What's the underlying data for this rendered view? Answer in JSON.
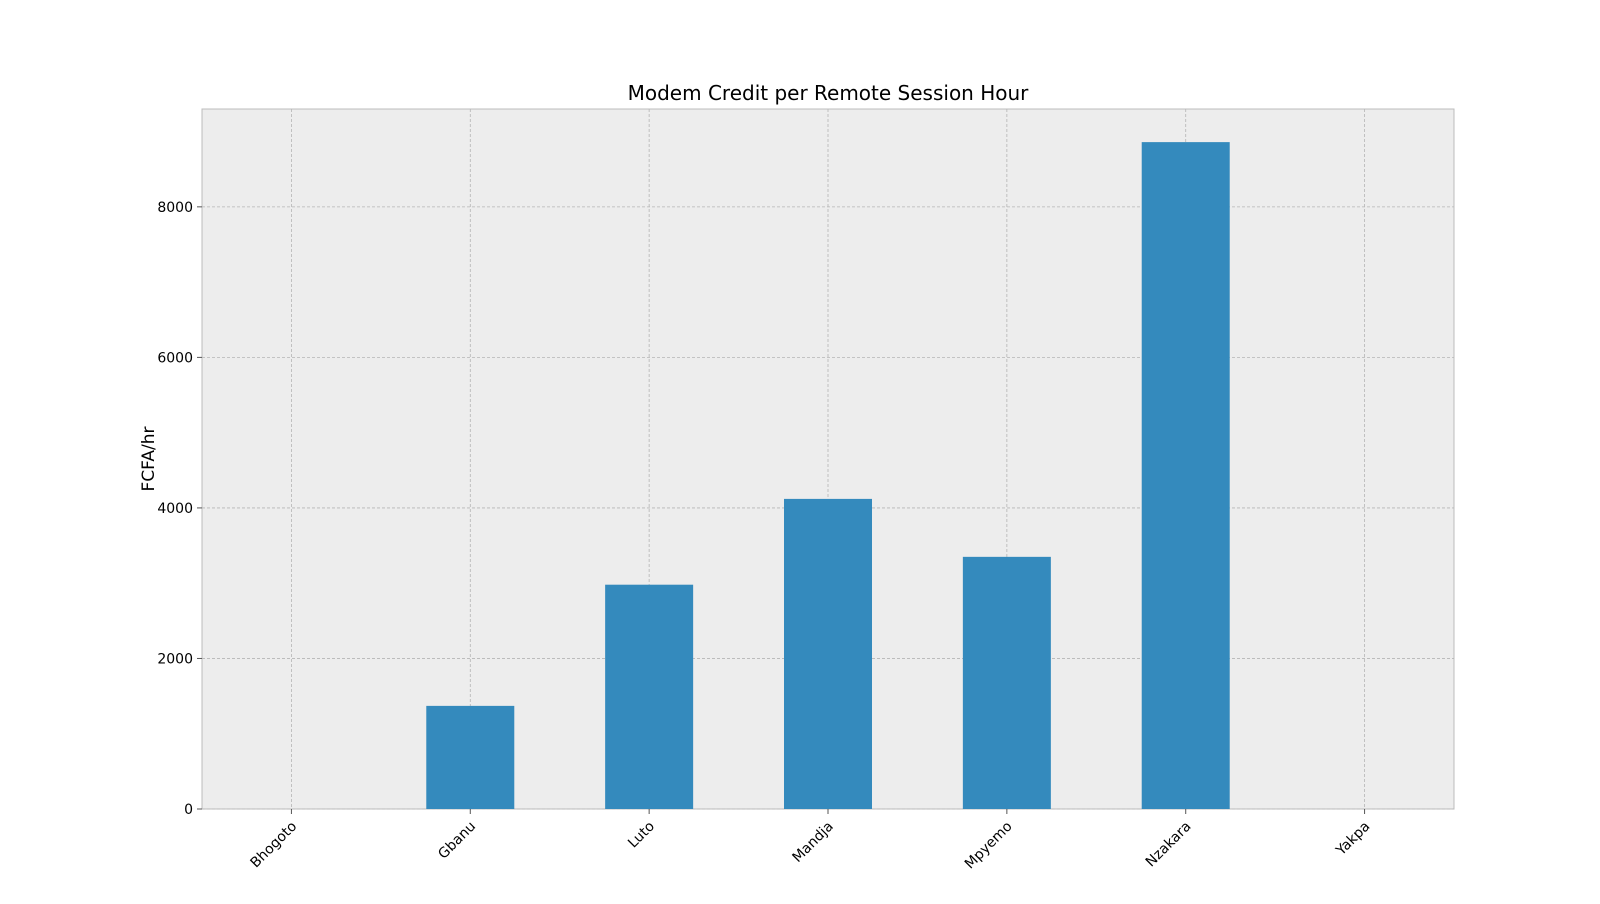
{
  "chart_data": {
    "type": "bar",
    "title": "Modem Credit per Remote Session Hour",
    "xlabel": "",
    "ylabel": "FCFA/hr",
    "categories": [
      "Bhogoto",
      "Gbanu",
      "Luto",
      "Mandja",
      "Mpyemo",
      "Nzakara",
      "Yakpa"
    ],
    "values": [
      0,
      1370,
      2980,
      4120,
      3350,
      8860,
      0
    ],
    "ylim": [
      0,
      9300
    ],
    "yticks": [
      0,
      2000,
      4000,
      6000,
      8000
    ],
    "grid": true,
    "legend": "none",
    "colors": {
      "bar": "#348abd",
      "plot_background": "#ededed",
      "grid": "#b5b5b5",
      "spine": "#bcbcbc"
    }
  }
}
